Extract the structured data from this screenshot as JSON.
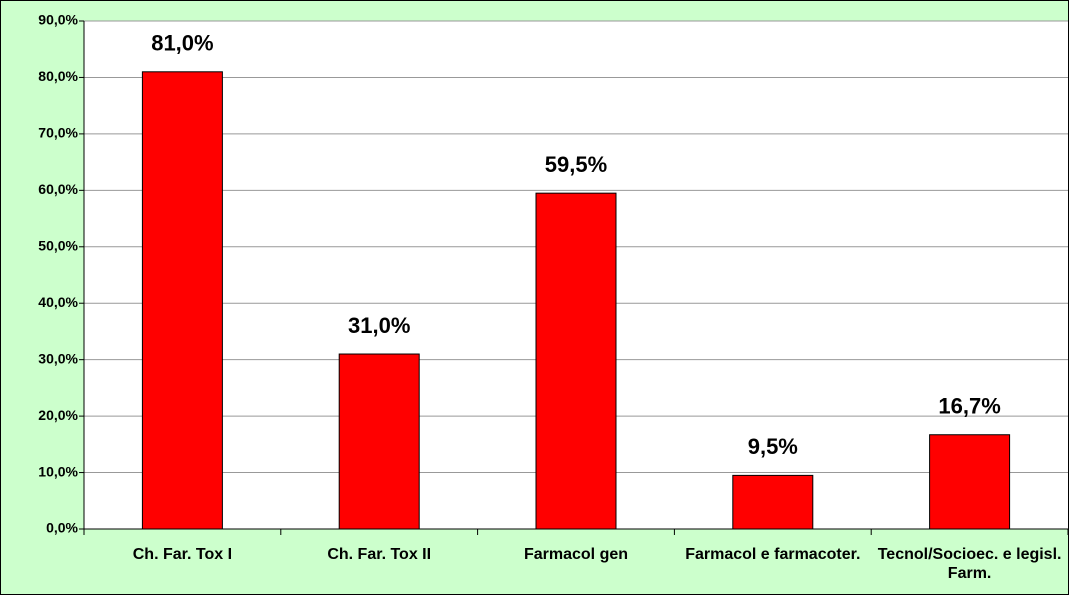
{
  "chart_data": {
    "type": "bar",
    "categories": [
      "Ch. Far. Tox I",
      "Ch. Far. Tox II",
      "Farmacol gen",
      "Farmacol e farmacoter.",
      "Tecnol/Socioec. e legisl. Farm."
    ],
    "values": [
      81.0,
      31.0,
      59.5,
      9.5,
      16.7
    ],
    "value_labels": [
      "81,0%",
      "31,0%",
      "59,5%",
      "9,5%",
      "16,7%"
    ],
    "color": "#ff0000",
    "ylim": [
      0,
      90
    ],
    "yticks": [
      {
        "value": 0,
        "label": "0,0%"
      },
      {
        "value": 10,
        "label": "10,0%"
      },
      {
        "value": 20,
        "label": "20,0%"
      },
      {
        "value": 30,
        "label": "30,0%"
      },
      {
        "value": 40,
        "label": "40,0%"
      },
      {
        "value": 50,
        "label": "50,0%"
      },
      {
        "value": 60,
        "label": "60,0%"
      },
      {
        "value": 70,
        "label": "70,0%"
      },
      {
        "value": 80,
        "label": "80,0%"
      },
      {
        "value": 90,
        "label": "90,0%"
      }
    ],
    "grid": true
  }
}
